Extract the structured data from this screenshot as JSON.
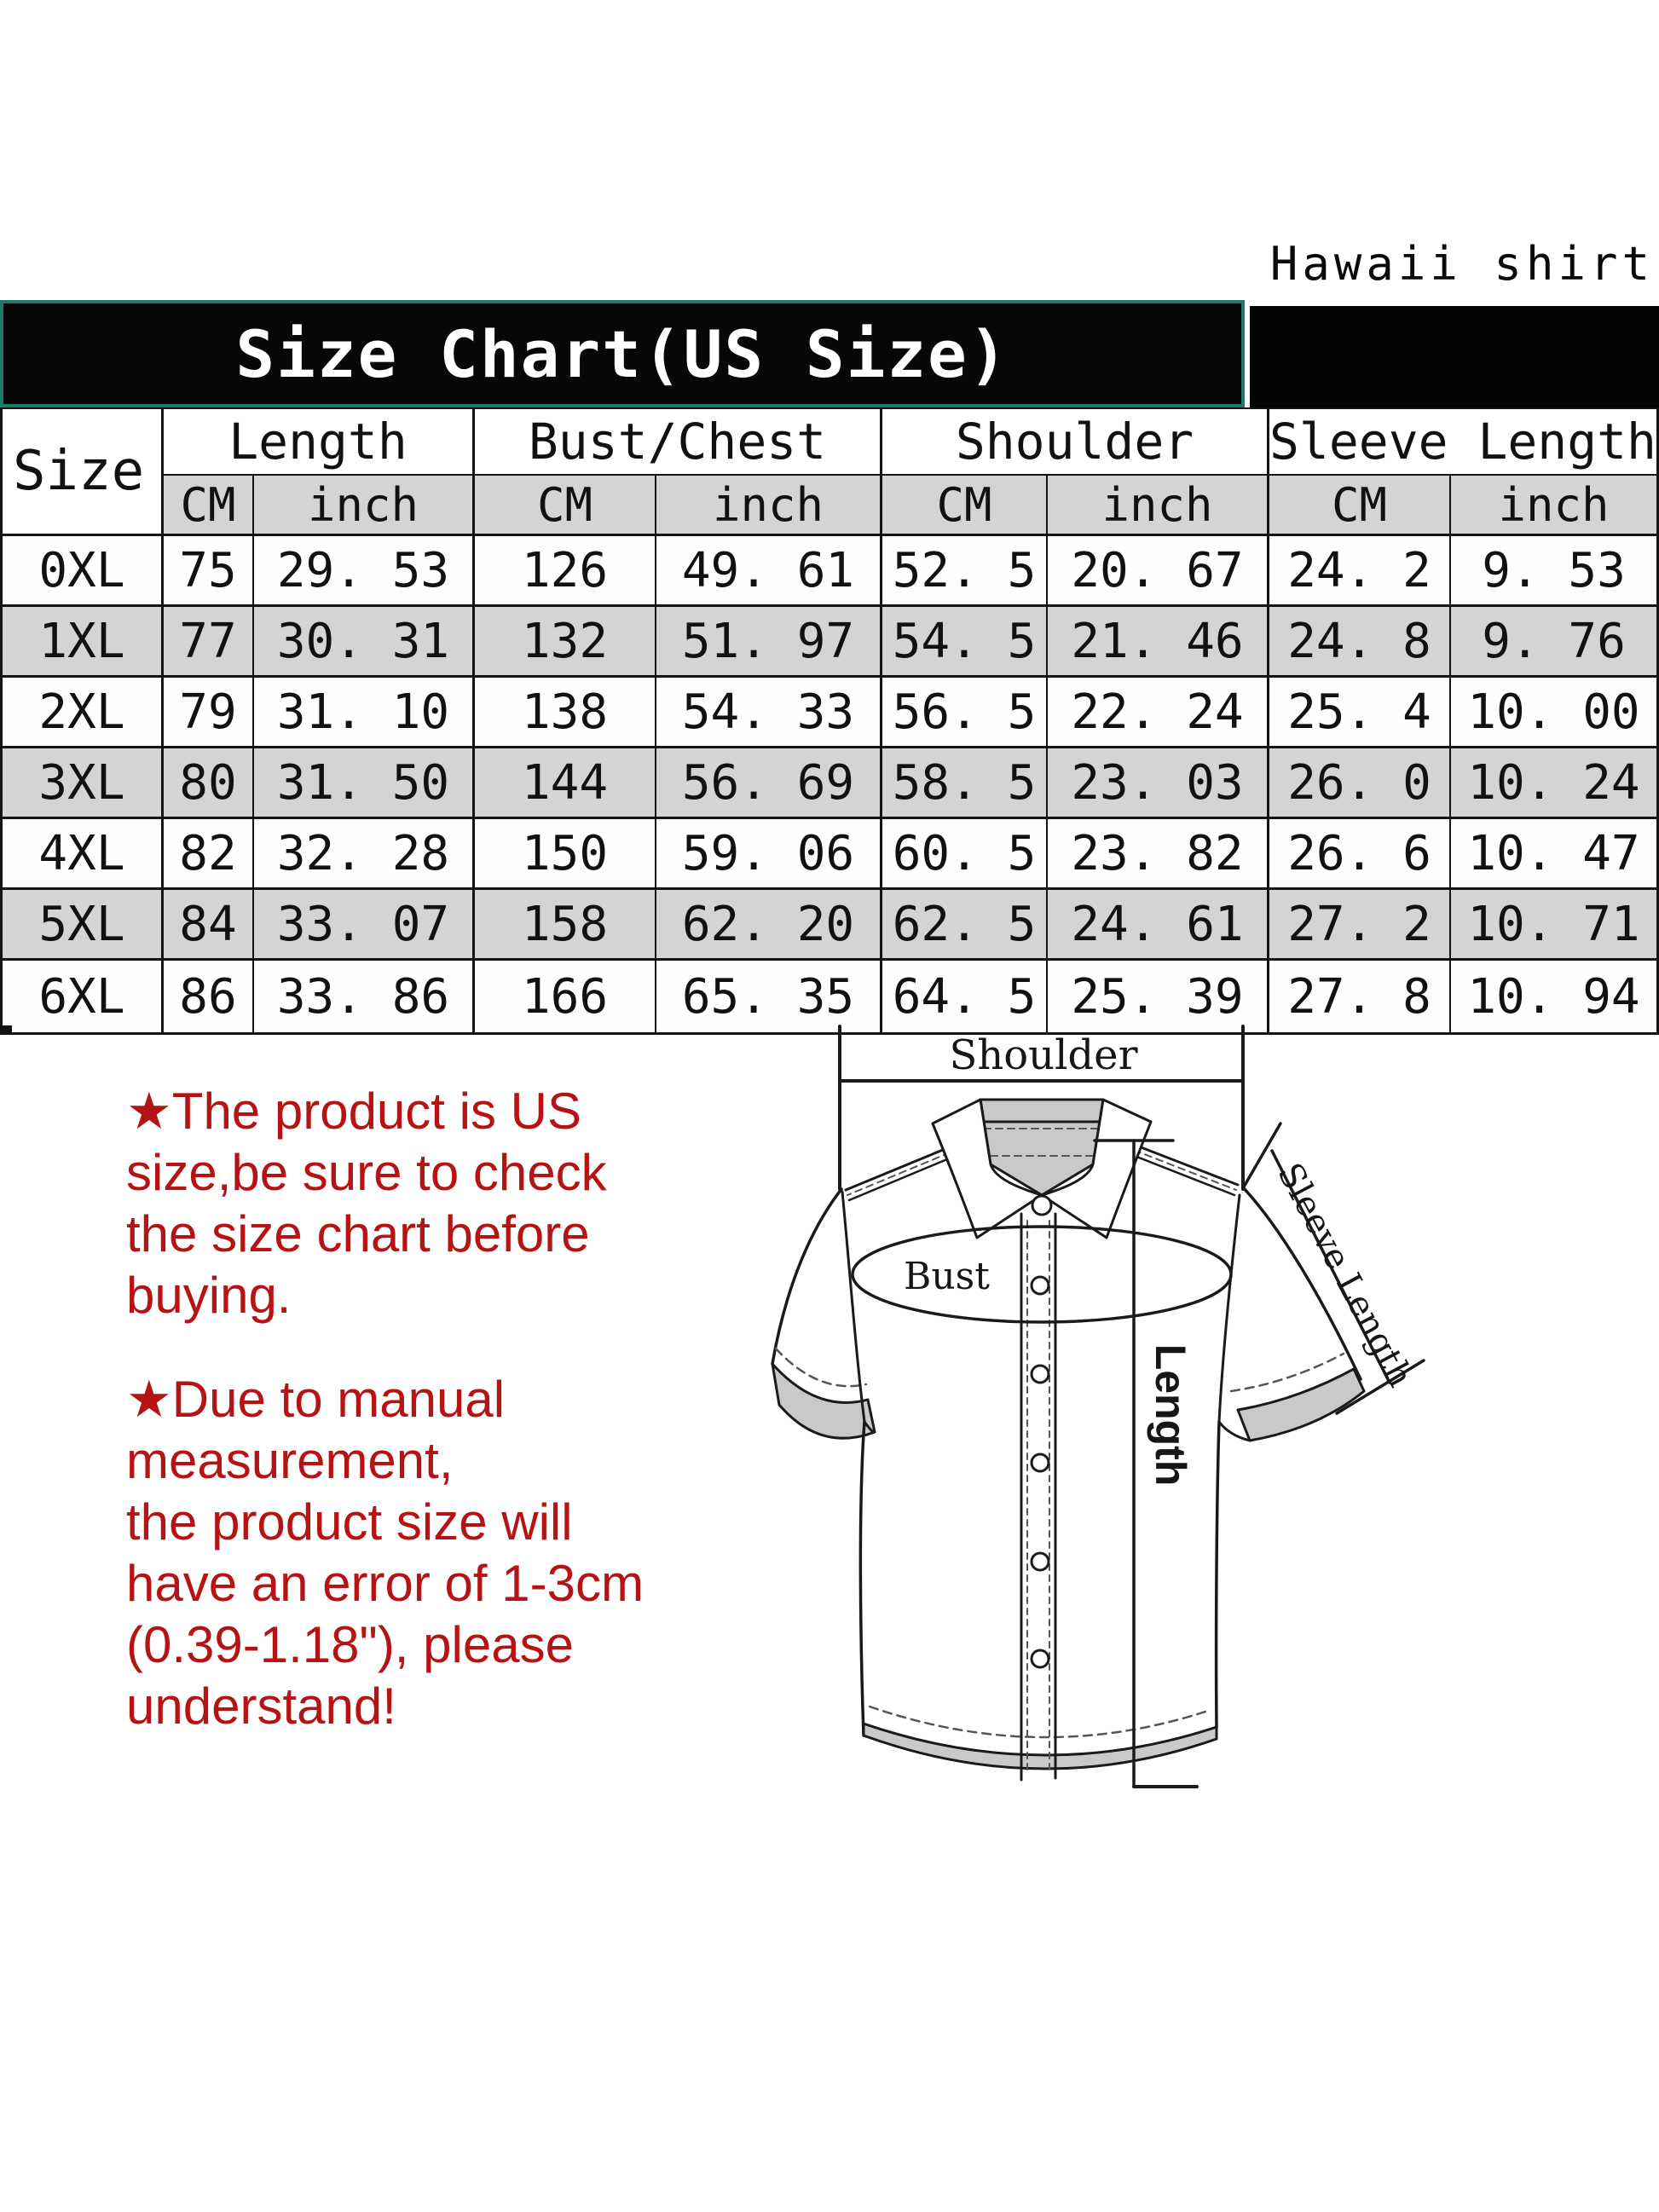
{
  "page": {
    "product_label": "Hawaii shirt"
  },
  "title": {
    "text": "Size Chart(US Size)"
  },
  "table": {
    "size_col_header": "Size",
    "groups": [
      {
        "label": "Length"
      },
      {
        "label": "Bust/Chest"
      },
      {
        "label": "Shoulder"
      },
      {
        "label": "Sleeve Length"
      }
    ],
    "unit_cm": "CM",
    "unit_inch": "inch",
    "rows": [
      {
        "size": "0XL",
        "cells": [
          "75",
          "29. 53",
          "126",
          "49. 61",
          "52. 5",
          "20. 67",
          "24. 2",
          "9. 53"
        ]
      },
      {
        "size": "1XL",
        "cells": [
          "77",
          "30. 31",
          "132",
          "51. 97",
          "54. 5",
          "21. 46",
          "24. 8",
          "9. 76"
        ]
      },
      {
        "size": "2XL",
        "cells": [
          "79",
          "31. 10",
          "138",
          "54. 33",
          "56. 5",
          "22. 24",
          "25. 4",
          "10. 00"
        ]
      },
      {
        "size": "3XL",
        "cells": [
          "80",
          "31. 50",
          "144",
          "56. 69",
          "58. 5",
          "23. 03",
          "26. 0",
          "10. 24"
        ]
      },
      {
        "size": "4XL",
        "cells": [
          "82",
          "32. 28",
          "150",
          "59. 06",
          "60. 5",
          "23. 82",
          "26. 6",
          "10. 47"
        ]
      },
      {
        "size": "5XL",
        "cells": [
          "84",
          "33. 07",
          "158",
          "62. 20",
          "62. 5",
          "24. 61",
          "27. 2",
          "10. 71"
        ]
      },
      {
        "size": "6XL",
        "cells": [
          "86",
          "33. 86",
          "166",
          "65. 35",
          "64. 5",
          "25. 39",
          "27. 8",
          "10. 94"
        ]
      }
    ]
  },
  "notes": [
    {
      "lines": "★The product is US\nsize,be sure to check\nthe size chart before\nbuying."
    },
    {
      "lines": "★Due to manual\nmeasurement,\nthe product size will\nhave an error of 1-3cm\n(0.39-1.18\"), please\nunderstand!"
    }
  ],
  "diagram": {
    "shoulder_label": "Shoulder",
    "bust_label": "Bust",
    "length_label": "Length",
    "sleeve_length_label": "Sleeve Length"
  },
  "colors": {
    "teal": "#1c7a67",
    "note-red": "#b61414",
    "row-gray": "#d4d4d4",
    "line": "#141414"
  }
}
